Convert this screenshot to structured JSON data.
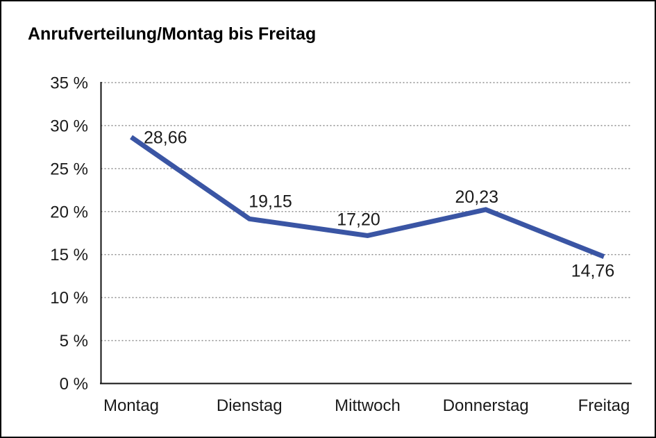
{
  "chart_data": {
    "type": "line",
    "title": "Anrufverteilung/Montag bis Freitag",
    "categories": [
      "Montag",
      "Dienstag",
      "Mittwoch",
      "Donnerstag",
      "Freitag"
    ],
    "values": [
      28.66,
      19.15,
      17.2,
      20.23,
      14.76
    ],
    "value_labels": [
      "28,66",
      "19,15",
      "17,20",
      "20,23",
      "14,76"
    ],
    "xlabel": "",
    "ylabel": "",
    "ylim": [
      0,
      35
    ],
    "y_tick_step": 5,
    "y_tick_labels": [
      "0 %",
      "5 %",
      "10 %",
      "15 %",
      "20 %",
      "25 %",
      "30 %",
      "35 %"
    ],
    "grid": "horizontal-dotted",
    "legend": "none",
    "colors": {
      "line": "#3A55A4",
      "text": "#1a1a1a",
      "grid": "#8c8c8c",
      "axis": "#111111",
      "background": "#ffffff",
      "frame_border": "#000000"
    }
  }
}
